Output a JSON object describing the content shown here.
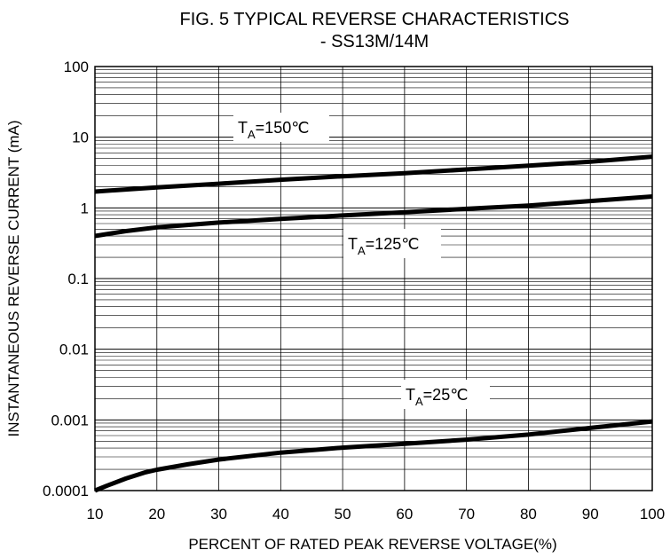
{
  "chart_data": {
    "type": "line",
    "title": "FIG. 5 TYPICAL REVERSE CHARACTERISTICS",
    "subtitle": "- SS13M/14M",
    "xlabel": "PERCENT OF RATED PEAK REVERSE VOLTAGE(%)",
    "ylabel": "INSTANTANEOUS REVERSE CURRENT (mA)",
    "xlim": [
      10,
      100
    ],
    "ylim": [
      0.0001,
      100
    ],
    "yscale": "log",
    "grid": true,
    "x_ticks": [
      "10",
      "20",
      "30",
      "40",
      "50",
      "60",
      "70",
      "80",
      "90",
      "100"
    ],
    "y_ticks": [
      "100",
      "10",
      "1",
      "0.1",
      "0.01",
      "0.001",
      "0.0001"
    ],
    "series": [
      {
        "name": "TA=150℃",
        "label_main": "T",
        "label_sub": "A",
        "label_rest": "=150℃",
        "x": [
          10,
          20,
          30,
          40,
          50,
          60,
          70,
          80,
          90,
          100
        ],
        "y": [
          1.7,
          1.95,
          2.2,
          2.5,
          2.8,
          3.1,
          3.5,
          3.95,
          4.5,
          5.3
        ]
      },
      {
        "name": "TA=125℃",
        "label_main": "T",
        "label_sub": "A",
        "label_rest": "=125℃",
        "x": [
          10,
          15,
          20,
          30,
          40,
          50,
          60,
          70,
          80,
          90,
          100
        ],
        "y": [
          0.4,
          0.47,
          0.53,
          0.62,
          0.7,
          0.78,
          0.87,
          0.97,
          1.08,
          1.25,
          1.45
        ]
      },
      {
        "name": "TA=25℃",
        "label_main": "T",
        "label_sub": "A",
        "label_rest": "=25℃",
        "x": [
          10,
          12,
          15,
          18,
          20,
          25,
          30,
          40,
          50,
          60,
          70,
          80,
          90,
          100
        ],
        "y": [
          0.0001,
          0.000118,
          0.000148,
          0.00018,
          0.000197,
          0.000235,
          0.000275,
          0.000345,
          0.000405,
          0.00046,
          0.000525,
          0.00062,
          0.00077,
          0.00095
        ]
      }
    ]
  }
}
